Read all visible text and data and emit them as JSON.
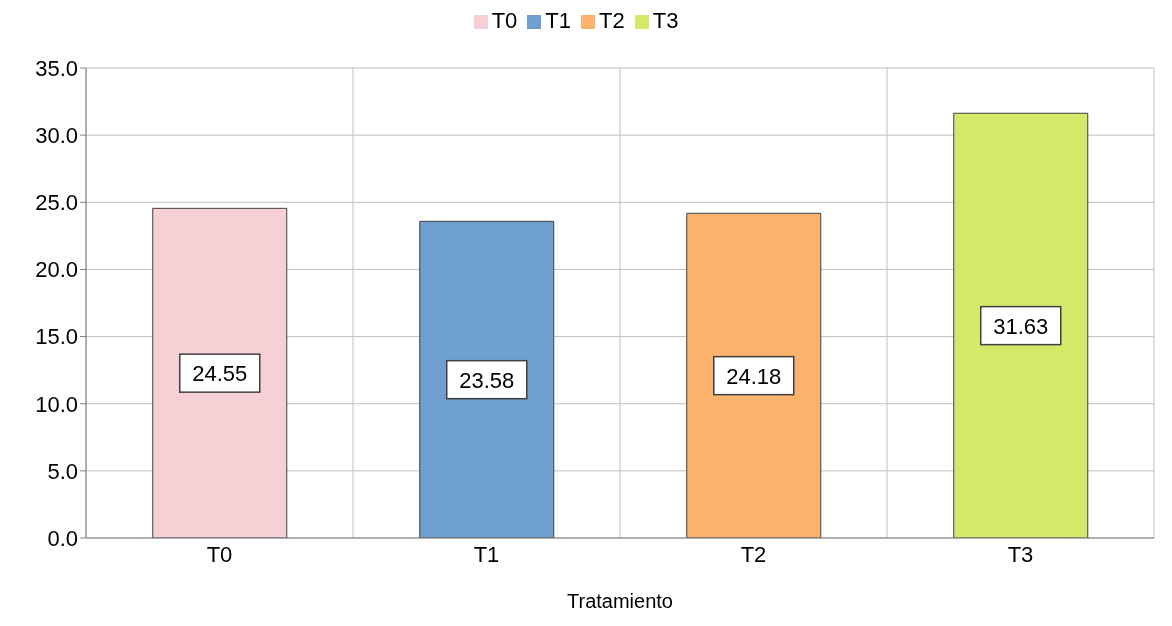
{
  "chart_data": {
    "type": "bar",
    "xlabel": "Tratamiento",
    "categories": [
      "T0",
      "T1",
      "T2",
      "T3"
    ],
    "stacked": true,
    "series": [
      {
        "name": "T0",
        "color": "#f6d0d5",
        "values": [
          24.55,
          null,
          null,
          null
        ]
      },
      {
        "name": "T1",
        "color": "#6f9fcf",
        "values": [
          null,
          23.58,
          null,
          null
        ]
      },
      {
        "name": "T2",
        "color": "#fdb26e",
        "values": [
          null,
          null,
          24.18,
          null
        ]
      },
      {
        "name": "T3",
        "color": "#d5e86a",
        "values": [
          null,
          null,
          null,
          31.63
        ]
      }
    ],
    "ylim": [
      0,
      35
    ],
    "yticks": [
      {
        "value": 0,
        "label": "0.0"
      },
      {
        "value": 5,
        "label": "5.0"
      },
      {
        "value": 10,
        "label": "10.0"
      },
      {
        "value": 15,
        "label": "15.0"
      },
      {
        "value": 20,
        "label": "20.0"
      },
      {
        "value": 25,
        "label": "25.0"
      },
      {
        "value": 30,
        "label": "30.0"
      },
      {
        "value": 35,
        "label": "35.0"
      }
    ],
    "grid": true,
    "legend": "top",
    "data_labels": true
  }
}
